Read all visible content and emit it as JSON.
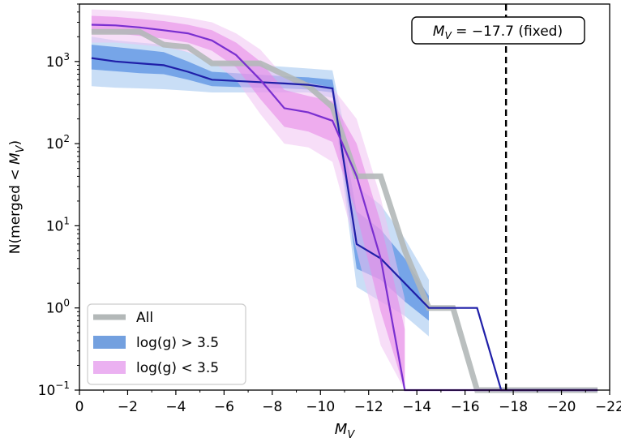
{
  "chart_data": {
    "type": "line",
    "title": "",
    "xlabel": "M_V",
    "ylabel": "N(merged < M_V)",
    "xlim": [
      0,
      -22
    ],
    "ylim": [
      0.1,
      5000
    ],
    "yscale": "log",
    "x_ticks": [
      0,
      -2,
      -4,
      -6,
      -8,
      -10,
      -12,
      -14,
      -16,
      -18,
      -20,
      -22
    ],
    "x_tick_labels": [
      "0",
      "−2",
      "−4",
      "−6",
      "−8",
      "−10",
      "−12",
      "−14",
      "−16",
      "−18",
      "−20",
      "−22"
    ],
    "y_ticks": [
      0.1,
      1,
      10,
      100,
      1000
    ],
    "y_tick_labels": [
      {
        "base": "10",
        "exp": "−1"
      },
      {
        "base": "10",
        "exp": "0"
      },
      {
        "base": "10",
        "exp": "1"
      },
      {
        "base": "10",
        "exp": "2"
      },
      {
        "base": "10",
        "exp": "3"
      }
    ],
    "grid": false,
    "legend_position": "lower-left",
    "legend": [
      {
        "label": "All",
        "color": "#b3b8b8",
        "kind": "line"
      },
      {
        "label": "log(g) > 3.5",
        "color": "#5b8fd9",
        "kind": "patch"
      },
      {
        "label": "log(g) < 3.5",
        "color": "#e8a3ef",
        "kind": "patch"
      }
    ],
    "annotation": {
      "label": "M_V = −17.7 (fixed)",
      "vline_x": -17.7
    },
    "series": [
      {
        "name": "All",
        "color": "#b3b8b8",
        "style": "step",
        "x": [
          -0.5,
          -2.5,
          -3.5,
          -4.5,
          -5.5,
          -7.5,
          -9.5,
          -10.5,
          -11.5,
          -12.5,
          -13.5,
          -14.5,
          -15.5,
          -16.5,
          -21.5
        ],
        "y": [
          2300,
          2300,
          1600,
          1500,
          950,
          950,
          500,
          280,
          40,
          40,
          5,
          1,
          1,
          0.1,
          0.1
        ]
      },
      {
        "name": "log(g) > 3.5",
        "color": "#1f1fa8",
        "band_inner_color": "#3f7fe0",
        "band_outer_color": "#9cc3ee",
        "x": [
          -0.5,
          -1.5,
          -2.5,
          -3.5,
          -4.5,
          -5.5,
          -6.5,
          -7.5,
          -8.5,
          -9.5,
          -10.5,
          -11.5,
          -12.5,
          -13.5,
          -14.5,
          -15.5,
          -16.5,
          -17.5,
          -21.5
        ],
        "y": [
          1100,
          1000,
          950,
          900,
          750,
          600,
          580,
          560,
          540,
          520,
          470,
          6,
          4,
          2,
          1,
          1,
          1,
          0.1,
          0.1
        ],
        "inner_low": [
          800,
          760,
          720,
          700,
          600,
          500,
          490,
          480,
          470,
          455,
          420,
          3,
          2.2,
          1.2,
          0.7
        ],
        "inner_high": [
          1600,
          1500,
          1400,
          1300,
          1000,
          750,
          720,
          690,
          660,
          640,
          600,
          15,
          9,
          4,
          1.4
        ],
        "outer_low": [
          500,
          480,
          470,
          460,
          440,
          420,
          420,
          420,
          420,
          420,
          360,
          1.8,
          1.2,
          0.8,
          0.45
        ],
        "outer_high": [
          2000,
          1800,
          1700,
          1600,
          1300,
          1000,
          950,
          900,
          860,
          820,
          780,
          30,
          18,
          7,
          2.2
        ]
      },
      {
        "name": "log(g) < 3.5",
        "color": "#7a2fd0",
        "band_inner_color": "#e88be8",
        "band_outer_color": "#f1c3f3",
        "x": [
          -0.5,
          -1.5,
          -2.5,
          -3.5,
          -4.5,
          -5.5,
          -6.5,
          -7.5,
          -8.5,
          -9.5,
          -10.5,
          -11.5,
          -12.5,
          -13.5,
          -14.5,
          -21.5
        ],
        "y": [
          2800,
          2750,
          2600,
          2400,
          2200,
          1800,
          1200,
          600,
          270,
          240,
          190,
          40,
          4,
          0.1,
          0.1,
          0.1
        ],
        "inner_low": [
          2200,
          2200,
          2050,
          1900,
          1700,
          1350,
          850,
          350,
          160,
          140,
          105,
          14,
          0.9,
          0.1
        ],
        "inner_high": [
          3600,
          3500,
          3300,
          3100,
          2800,
          2400,
          1700,
          1000,
          450,
          380,
          330,
          100,
          11,
          0.55
        ],
        "outer_low": [
          1700,
          1700,
          1600,
          1500,
          1300,
          1000,
          600,
          230,
          100,
          90,
          60,
          5,
          0.35,
          0.1
        ],
        "outer_high": [
          4300,
          4200,
          4000,
          3700,
          3400,
          3000,
          2200,
          1400,
          650,
          550,
          480,
          200,
          22,
          1.3
        ]
      }
    ]
  }
}
